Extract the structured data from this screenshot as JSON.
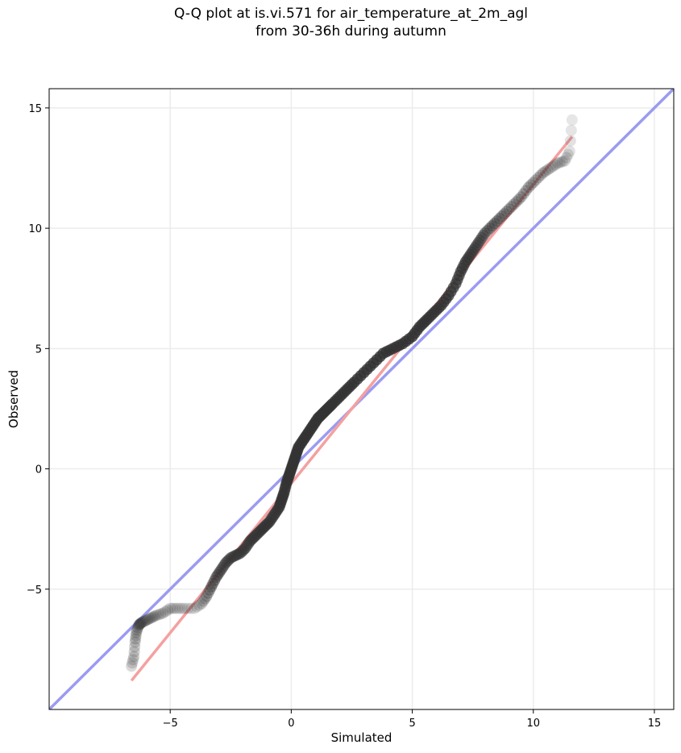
{
  "chart_data": {
    "type": "scatter",
    "title_lines": [
      "Q-Q plot at is.vi.571 for air_temperature_at_2m_agl",
      "from 30-36h during autumn"
    ],
    "xlabel": "Simulated",
    "ylabel": "Observed",
    "xlim": [
      -10,
      15.8
    ],
    "ylim": [
      -10,
      15.8
    ],
    "xticks": [
      -5,
      0,
      5,
      10,
      15
    ],
    "yticks": [
      -5,
      0,
      5,
      10,
      15
    ],
    "xtick_labels": [
      "−5",
      "0",
      "5",
      "10",
      "15"
    ],
    "ytick_labels": [
      "−5",
      "0",
      "5",
      "10",
      "15"
    ],
    "grid": true,
    "colors": {
      "points": "#333333",
      "identity_line": "#9b9bf0",
      "fit_line": "#f5a0a0",
      "grid": "#ececec"
    },
    "identity_line": {
      "x": [
        -10,
        15.8
      ],
      "y": [
        -10,
        15.8
      ]
    },
    "fit_line": {
      "x": [
        -6.6,
        11.6
      ],
      "y": [
        -8.8,
        13.8
      ]
    },
    "points": {
      "x": [
        -6.6,
        -6.5,
        -6.45,
        -6.4,
        -6.3,
        -6.2,
        -6.0,
        -5.8,
        -5.6,
        -5.3,
        -5.0,
        -4.7,
        -4.4,
        -4.0,
        -3.7,
        -3.5,
        -3.3,
        -3.1,
        -2.9,
        -2.7,
        -2.5,
        -2.3,
        -2.1,
        -1.9,
        -1.7,
        -1.5,
        -1.3,
        -1.1,
        -0.9,
        -0.7,
        -0.5,
        -0.4,
        -0.3,
        -0.2,
        -0.1,
        0.0,
        0.1,
        0.2,
        0.3,
        0.5,
        0.7,
        0.9,
        1.1,
        1.3,
        1.5,
        1.7,
        2.0,
        2.3,
        2.6,
        3.0,
        3.4,
        3.8,
        4.2,
        4.6,
        5.0,
        5.3,
        5.6,
        5.9,
        6.2,
        6.5,
        6.8,
        7.0,
        7.2,
        7.4,
        7.6,
        7.8,
        8.0,
        8.3,
        8.6,
        8.9,
        9.2,
        9.5,
        9.8,
        10.1,
        10.4,
        10.7,
        11.0,
        11.3,
        11.5,
        11.6
      ],
      "y": [
        -8.2,
        -7.8,
        -7.2,
        -6.8,
        -6.5,
        -6.4,
        -6.3,
        -6.2,
        -6.1,
        -6.0,
        -5.8,
        -5.8,
        -5.8,
        -5.8,
        -5.6,
        -5.3,
        -4.9,
        -4.5,
        -4.2,
        -3.9,
        -3.7,
        -3.6,
        -3.5,
        -3.3,
        -3.0,
        -2.8,
        -2.6,
        -2.4,
        -2.2,
        -1.9,
        -1.6,
        -1.3,
        -1.0,
        -0.6,
        -0.3,
        0.0,
        0.3,
        0.6,
        0.9,
        1.2,
        1.5,
        1.8,
        2.1,
        2.3,
        2.5,
        2.7,
        3.0,
        3.3,
        3.6,
        4.0,
        4.4,
        4.8,
        5.0,
        5.2,
        5.5,
        5.9,
        6.2,
        6.5,
        6.8,
        7.2,
        7.7,
        8.2,
        8.6,
        8.9,
        9.2,
        9.5,
        9.8,
        10.1,
        10.4,
        10.7,
        11.0,
        11.3,
        11.7,
        12.0,
        12.3,
        12.5,
        12.7,
        12.8,
        13.2,
        14.5
      ],
      "opacity": [
        0.18,
        0.2,
        0.22,
        0.25,
        0.3,
        0.3,
        0.25,
        0.22,
        0.2,
        0.2,
        0.18,
        0.15,
        0.15,
        0.15,
        0.2,
        0.3,
        0.45,
        0.5,
        0.5,
        0.5,
        0.45,
        0.45,
        0.5,
        0.55,
        0.6,
        0.6,
        0.6,
        0.65,
        0.65,
        0.7,
        0.7,
        0.75,
        0.75,
        0.8,
        0.8,
        0.8,
        0.8,
        0.8,
        0.8,
        0.8,
        0.8,
        0.8,
        0.8,
        0.8,
        0.8,
        0.8,
        0.8,
        0.8,
        0.8,
        0.8,
        0.8,
        0.8,
        0.8,
        0.8,
        0.8,
        0.8,
        0.8,
        0.75,
        0.75,
        0.75,
        0.7,
        0.7,
        0.65,
        0.6,
        0.55,
        0.5,
        0.45,
        0.45,
        0.4,
        0.35,
        0.3,
        0.3,
        0.3,
        0.25,
        0.25,
        0.2,
        0.2,
        0.18,
        0.15,
        0.12
      ]
    }
  }
}
